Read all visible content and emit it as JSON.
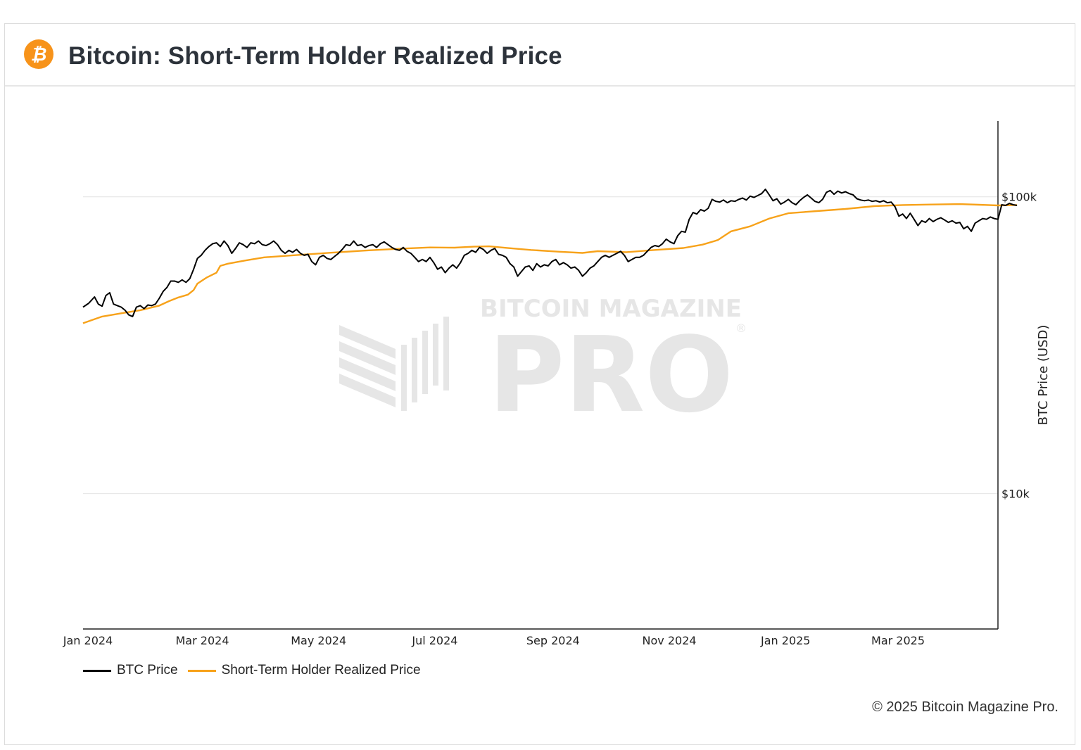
{
  "header": {
    "title": "Bitcoin: Short-Term Holder Realized Price"
  },
  "footer": {
    "copyright": "© 2025 Bitcoin Magazine Pro."
  },
  "watermark": {
    "line1": "BITCOIN MAGAZINE",
    "line2": "PRO",
    "mark": "®"
  },
  "colors": {
    "btc": "#000000",
    "sth": "#f7a21a",
    "accent": "#f7931a"
  },
  "chart_data": {
    "type": "line",
    "title": "Bitcoin: Short-Term Holder Realized Price",
    "xlabel": "",
    "ylabel": "BTC Price (USD)",
    "yscale": "log",
    "ylim": [
      3500,
      180000
    ],
    "xlim": [
      0,
      480
    ],
    "grid": true,
    "legend": "bottom-left",
    "x_ticks": [
      {
        "label": "Jan 2024",
        "day": 0
      },
      {
        "label": "Mar 2024",
        "day": 60
      },
      {
        "label": "May 2024",
        "day": 121
      },
      {
        "label": "Jul 2024",
        "day": 182
      },
      {
        "label": "Sep 2024",
        "day": 244
      },
      {
        "label": "Nov 2024",
        "day": 305
      },
      {
        "label": "Jan 2025",
        "day": 366
      },
      {
        "label": "Mar 2025",
        "day": 425
      }
    ],
    "y_ticks": [
      {
        "label": "$100k",
        "value": 100000
      },
      {
        "label": "$10k",
        "value": 10000
      }
    ],
    "series": [
      {
        "name": "BTC Price",
        "color": "#000000",
        "points": [
          [
            0,
            42500
          ],
          [
            3,
            43800
          ],
          [
            6,
            46000
          ],
          [
            8,
            43500
          ],
          [
            10,
            42800
          ],
          [
            12,
            46500
          ],
          [
            14,
            47500
          ],
          [
            16,
            43500
          ],
          [
            18,
            43000
          ],
          [
            20,
            42500
          ],
          [
            22,
            41500
          ],
          [
            24,
            40000
          ],
          [
            26,
            39500
          ],
          [
            28,
            42500
          ],
          [
            30,
            43000
          ],
          [
            32,
            42000
          ],
          [
            34,
            43200
          ],
          [
            36,
            43000
          ],
          [
            38,
            43500
          ],
          [
            40,
            45500
          ],
          [
            42,
            48000
          ],
          [
            44,
            49500
          ],
          [
            46,
            52000
          ],
          [
            48,
            52000
          ],
          [
            50,
            51500
          ],
          [
            52,
            52500
          ],
          [
            54,
            51500
          ],
          [
            56,
            53000
          ],
          [
            58,
            57000
          ],
          [
            60,
            62000
          ],
          [
            62,
            63500
          ],
          [
            64,
            66000
          ],
          [
            66,
            68000
          ],
          [
            68,
            69500
          ],
          [
            70,
            70000
          ],
          [
            72,
            68000
          ],
          [
            74,
            71000
          ],
          [
            76,
            68500
          ],
          [
            78,
            64500
          ],
          [
            80,
            67000
          ],
          [
            82,
            70000
          ],
          [
            84,
            69000
          ],
          [
            86,
            67500
          ],
          [
            88,
            70000
          ],
          [
            90,
            69500
          ],
          [
            92,
            71000
          ],
          [
            94,
            69000
          ],
          [
            96,
            68500
          ],
          [
            98,
            69500
          ],
          [
            100,
            71000
          ],
          [
            102,
            69000
          ],
          [
            104,
            66000
          ],
          [
            106,
            64500
          ],
          [
            108,
            66000
          ],
          [
            110,
            65000
          ],
          [
            112,
            66500
          ],
          [
            114,
            64500
          ],
          [
            116,
            63500
          ],
          [
            118,
            64000
          ],
          [
            120,
            60500
          ],
          [
            122,
            59000
          ],
          [
            124,
            62500
          ],
          [
            126,
            63500
          ],
          [
            128,
            62000
          ],
          [
            130,
            61500
          ],
          [
            132,
            63000
          ],
          [
            134,
            64500
          ],
          [
            136,
            66500
          ],
          [
            138,
            69000
          ],
          [
            140,
            68500
          ],
          [
            142,
            71000
          ],
          [
            144,
            68500
          ],
          [
            146,
            69000
          ],
          [
            148,
            67500
          ],
          [
            150,
            68500
          ],
          [
            152,
            69000
          ],
          [
            154,
            67500
          ],
          [
            156,
            69500
          ],
          [
            158,
            70500
          ],
          [
            160,
            69000
          ],
          [
            162,
            67500
          ],
          [
            164,
            66500
          ],
          [
            166,
            66000
          ],
          [
            168,
            67500
          ],
          [
            170,
            65500
          ],
          [
            172,
            64500
          ],
          [
            174,
            62500
          ],
          [
            176,
            60500
          ],
          [
            178,
            61500
          ],
          [
            180,
            60500
          ],
          [
            182,
            62500
          ],
          [
            184,
            60000
          ],
          [
            186,
            57000
          ],
          [
            188,
            58000
          ],
          [
            190,
            55500
          ],
          [
            192,
            57500
          ],
          [
            194,
            59000
          ],
          [
            196,
            57500
          ],
          [
            198,
            60000
          ],
          [
            200,
            63500
          ],
          [
            202,
            64500
          ],
          [
            204,
            66000
          ],
          [
            206,
            65000
          ],
          [
            208,
            67500
          ],
          [
            210,
            66500
          ],
          [
            212,
            64500
          ],
          [
            214,
            66000
          ],
          [
            216,
            67000
          ],
          [
            218,
            64000
          ],
          [
            220,
            63500
          ],
          [
            222,
            62500
          ],
          [
            224,
            59500
          ],
          [
            226,
            58000
          ],
          [
            228,
            54000
          ],
          [
            230,
            56000
          ],
          [
            232,
            58000
          ],
          [
            234,
            58500
          ],
          [
            236,
            56500
          ],
          [
            238,
            59500
          ],
          [
            240,
            58000
          ],
          [
            242,
            59000
          ],
          [
            244,
            58500
          ],
          [
            246,
            60500
          ],
          [
            248,
            61500
          ],
          [
            250,
            59000
          ],
          [
            252,
            60000
          ],
          [
            254,
            59000
          ],
          [
            256,
            57500
          ],
          [
            258,
            58000
          ],
          [
            260,
            56500
          ],
          [
            262,
            54000
          ],
          [
            264,
            55500
          ],
          [
            266,
            57500
          ],
          [
            268,
            58500
          ],
          [
            270,
            60500
          ],
          [
            272,
            62500
          ],
          [
            274,
            63500
          ],
          [
            276,
            62500
          ],
          [
            278,
            63500
          ],
          [
            280,
            64500
          ],
          [
            282,
            65500
          ],
          [
            284,
            63500
          ],
          [
            286,
            60500
          ],
          [
            288,
            61500
          ],
          [
            290,
            62500
          ],
          [
            292,
            62500
          ],
          [
            294,
            63500
          ],
          [
            296,
            65500
          ],
          [
            298,
            67500
          ],
          [
            300,
            68500
          ],
          [
            302,
            68000
          ],
          [
            304,
            69500
          ],
          [
            306,
            72000
          ],
          [
            308,
            70500
          ],
          [
            310,
            69500
          ],
          [
            312,
            74000
          ],
          [
            314,
            76500
          ],
          [
            316,
            76000
          ],
          [
            318,
            84000
          ],
          [
            320,
            88500
          ],
          [
            322,
            87500
          ],
          [
            324,
            90500
          ],
          [
            326,
            89500
          ],
          [
            328,
            91500
          ],
          [
            330,
            98000
          ],
          [
            332,
            96500
          ],
          [
            334,
            96000
          ],
          [
            336,
            97500
          ],
          [
            338,
            95500
          ],
          [
            340,
            97000
          ],
          [
            342,
            96500
          ],
          [
            344,
            98000
          ],
          [
            346,
            99000
          ],
          [
            348,
            97500
          ],
          [
            350,
            100500
          ],
          [
            352,
            99500
          ],
          [
            354,
            101000
          ],
          [
            356,
            102500
          ],
          [
            358,
            106000
          ],
          [
            360,
            101500
          ],
          [
            362,
            97000
          ],
          [
            364,
            98500
          ],
          [
            366,
            94500
          ],
          [
            368,
            96000
          ],
          [
            370,
            98000
          ],
          [
            372,
            95500
          ],
          [
            374,
            94000
          ],
          [
            376,
            97000
          ],
          [
            378,
            99500
          ],
          [
            380,
            101500
          ],
          [
            382,
            99000
          ],
          [
            384,
            96500
          ],
          [
            386,
            95500
          ],
          [
            388,
            98000
          ],
          [
            390,
            103500
          ],
          [
            392,
            105000
          ],
          [
            394,
            102000
          ],
          [
            396,
            104500
          ],
          [
            398,
            103000
          ],
          [
            400,
            104000
          ],
          [
            402,
            102500
          ],
          [
            404,
            101500
          ],
          [
            406,
            98500
          ],
          [
            408,
            97500
          ],
          [
            410,
            97000
          ],
          [
            412,
            97500
          ],
          [
            414,
            96500
          ],
          [
            416,
            97000
          ],
          [
            418,
            96000
          ],
          [
            420,
            97000
          ],
          [
            422,
            95500
          ],
          [
            424,
            96000
          ],
          [
            426,
            92500
          ],
          [
            428,
            86000
          ],
          [
            430,
            87500
          ],
          [
            432,
            84500
          ],
          [
            434,
            88000
          ],
          [
            436,
            84000
          ],
          [
            438,
            80000
          ],
          [
            440,
            83000
          ],
          [
            442,
            82000
          ],
          [
            444,
            84500
          ],
          [
            446,
            82500
          ],
          [
            448,
            84000
          ],
          [
            450,
            85000
          ],
          [
            452,
            83500
          ],
          [
            454,
            82000
          ],
          [
            456,
            83000
          ],
          [
            458,
            81500
          ],
          [
            460,
            82000
          ],
          [
            462,
            78000
          ],
          [
            464,
            79500
          ],
          [
            466,
            76500
          ],
          [
            468,
            81500
          ],
          [
            470,
            83000
          ],
          [
            472,
            84500
          ],
          [
            474,
            84000
          ],
          [
            476,
            85500
          ],
          [
            478,
            84500
          ],
          [
            480,
            84000
          ],
          [
            482,
            94000
          ],
          [
            484,
            93500
          ],
          [
            486,
            95000
          ],
          [
            488,
            94000
          ],
          [
            490,
            93500
          ]
        ]
      },
      {
        "name": "Short-Term Holder Realized Price",
        "color": "#f7a21a",
        "points": [
          [
            0,
            37500
          ],
          [
            5,
            38500
          ],
          [
            10,
            39500
          ],
          [
            20,
            40500
          ],
          [
            30,
            41500
          ],
          [
            40,
            43000
          ],
          [
            45,
            44500
          ],
          [
            50,
            45800
          ],
          [
            55,
            46800
          ],
          [
            58,
            48500
          ],
          [
            60,
            51000
          ],
          [
            65,
            53500
          ],
          [
            70,
            55500
          ],
          [
            72,
            58500
          ],
          [
            76,
            59500
          ],
          [
            85,
            61000
          ],
          [
            95,
            62500
          ],
          [
            110,
            63500
          ],
          [
            130,
            64800
          ],
          [
            150,
            66000
          ],
          [
            170,
            67000
          ],
          [
            182,
            67500
          ],
          [
            195,
            67400
          ],
          [
            205,
            67900
          ],
          [
            213,
            68100
          ],
          [
            222,
            67300
          ],
          [
            235,
            66200
          ],
          [
            250,
            65300
          ],
          [
            262,
            64700
          ],
          [
            270,
            65600
          ],
          [
            285,
            65100
          ],
          [
            300,
            66200
          ],
          [
            315,
            67200
          ],
          [
            325,
            69000
          ],
          [
            333,
            71500
          ],
          [
            340,
            76500
          ],
          [
            350,
            79500
          ],
          [
            360,
            84500
          ],
          [
            370,
            88000
          ],
          [
            385,
            89500
          ],
          [
            400,
            91000
          ],
          [
            415,
            93000
          ],
          [
            430,
            93800
          ],
          [
            445,
            94200
          ],
          [
            460,
            94500
          ],
          [
            470,
            94000
          ],
          [
            480,
            93500
          ],
          [
            490,
            93800
          ]
        ]
      }
    ]
  }
}
